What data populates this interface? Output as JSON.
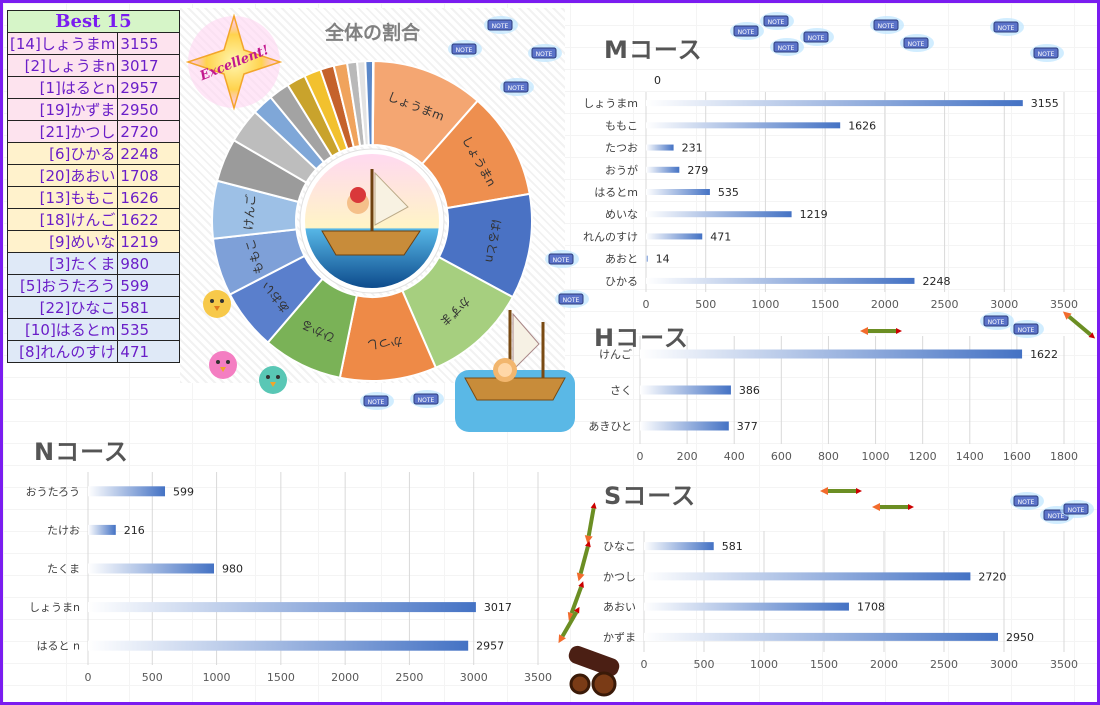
{
  "best": {
    "title": "Best 15",
    "rows": [
      {
        "name": "[14]しょうまm",
        "score": "3155",
        "band": "pink"
      },
      {
        "name": "[2]しょうまn",
        "score": "3017",
        "band": "pink"
      },
      {
        "name": "[1]はるとn",
        "score": "2957",
        "band": "pink"
      },
      {
        "name": "[19]かずま",
        "score": "2950",
        "band": "pink"
      },
      {
        "name": "[21]かつし",
        "score": "2720",
        "band": "pink"
      },
      {
        "name": "[6]ひかる",
        "score": "2248",
        "band": "yellow"
      },
      {
        "name": "[20]あおい",
        "score": "1708",
        "band": "yellow"
      },
      {
        "name": "[13]ももこ",
        "score": "1626",
        "band": "yellow"
      },
      {
        "name": "[18]けんご",
        "score": "1622",
        "band": "yellow"
      },
      {
        "name": "[9]めいな",
        "score": "1219",
        "band": "yellow"
      },
      {
        "name": "[3]たくま",
        "score": "980",
        "band": "blue"
      },
      {
        "name": "[5]おうたろう",
        "score": "599",
        "band": "blue"
      },
      {
        "name": "[22]ひなこ",
        "score": "581",
        "band": "blue"
      },
      {
        "name": "[10]はるとm",
        "score": "535",
        "band": "blue"
      },
      {
        "name": "[8]れんのすけ",
        "score": "471",
        "band": "blue"
      }
    ]
  },
  "badge": {
    "text": "Excellent!"
  },
  "chart_data": [
    {
      "id": "pie",
      "type": "pie",
      "title": "全体の割合",
      "slices": [
        {
          "label": "しょうまm",
          "value": 3155,
          "color": "#f4a672"
        },
        {
          "label": "しょうまn",
          "value": 3017,
          "color": "#ee8f4f"
        },
        {
          "label": "はるとn",
          "value": 2957,
          "color": "#4a72c4"
        },
        {
          "label": "かずま",
          "value": 2950,
          "color": "#a6cf7f"
        },
        {
          "label": "かつし",
          "value": 2720,
          "color": "#ee8a47"
        },
        {
          "label": "ひかる",
          "value": 2248,
          "color": "#7ab257"
        },
        {
          "label": "あおい",
          "value": 1708,
          "color": "#5a7fcc"
        },
        {
          "label": "ももこ",
          "value": 1626,
          "color": "#7ea0d8"
        },
        {
          "label": "けんご",
          "value": 1622,
          "color": "#9dc0e6"
        },
        {
          "label": "",
          "value": 1219,
          "color": "#9b9b9b"
        },
        {
          "label": "",
          "value": 980,
          "color": "#bdbdbd"
        },
        {
          "label": "",
          "value": 599,
          "color": "#7fa7d8"
        },
        {
          "label": "",
          "value": 581,
          "color": "#a3a3a3"
        },
        {
          "label": "",
          "value": 535,
          "color": "#c9a32c"
        },
        {
          "label": "",
          "value": 471,
          "color": "#f2c12e"
        },
        {
          "label": "",
          "value": 386,
          "color": "#c5622b"
        },
        {
          "label": "",
          "value": 377,
          "color": "#f0a35c"
        },
        {
          "label": "",
          "value": 279,
          "color": "#b9b9b9"
        },
        {
          "label": "",
          "value": 231,
          "color": "#e3e3e3"
        },
        {
          "label": "",
          "value": 216,
          "color": "#5b88c9"
        },
        {
          "label": "",
          "value": 14,
          "color": "#f7c843"
        }
      ]
    },
    {
      "id": "M",
      "type": "bar",
      "title": "Mコース",
      "categories": [
        "しょうまm",
        "ももこ",
        "たつお",
        "おうが",
        "はるとm",
        "めいな",
        "れんのすけ",
        "あおと",
        "ひかる"
      ],
      "values": [
        3155,
        1626,
        231,
        279,
        535,
        1219,
        471,
        14,
        2248
      ],
      "extra_label": "0",
      "xlim": [
        0,
        3500
      ],
      "xticks": [
        0,
        500,
        1000,
        1500,
        2000,
        2500,
        3000,
        3500
      ]
    },
    {
      "id": "H",
      "type": "bar",
      "title": "Hコース",
      "categories": [
        "けんご",
        "さく",
        "あきひと"
      ],
      "values": [
        1622,
        386,
        377
      ],
      "xlim": [
        0,
        1800
      ],
      "xticks": [
        0,
        200,
        400,
        600,
        800,
        1000,
        1200,
        1400,
        1600,
        1800
      ]
    },
    {
      "id": "N",
      "type": "bar",
      "title": "Nコース",
      "categories": [
        "おうたろう",
        "たけお",
        "たくま",
        "しょうまn",
        "はると n"
      ],
      "values": [
        599,
        216,
        980,
        3017,
        2957
      ],
      "xlim": [
        0,
        3500
      ],
      "xticks": [
        0,
        500,
        1000,
        1500,
        2000,
        2500,
        3000,
        3500
      ]
    },
    {
      "id": "S",
      "type": "bar",
      "title": "Sコース",
      "categories": [
        "ひなこ",
        "かつし",
        "あおい",
        "かずま"
      ],
      "values": [
        581,
        2720,
        1708,
        2950
      ],
      "xlim": [
        0,
        3500
      ],
      "xticks": [
        0,
        500,
        1000,
        1500,
        2000,
        2500,
        3000,
        3500
      ]
    }
  ],
  "note_label": "NOTE",
  "colors": {
    "frame": "#7a1cf0",
    "bar": "#4472c4",
    "table_text": "#6a1ec8"
  }
}
